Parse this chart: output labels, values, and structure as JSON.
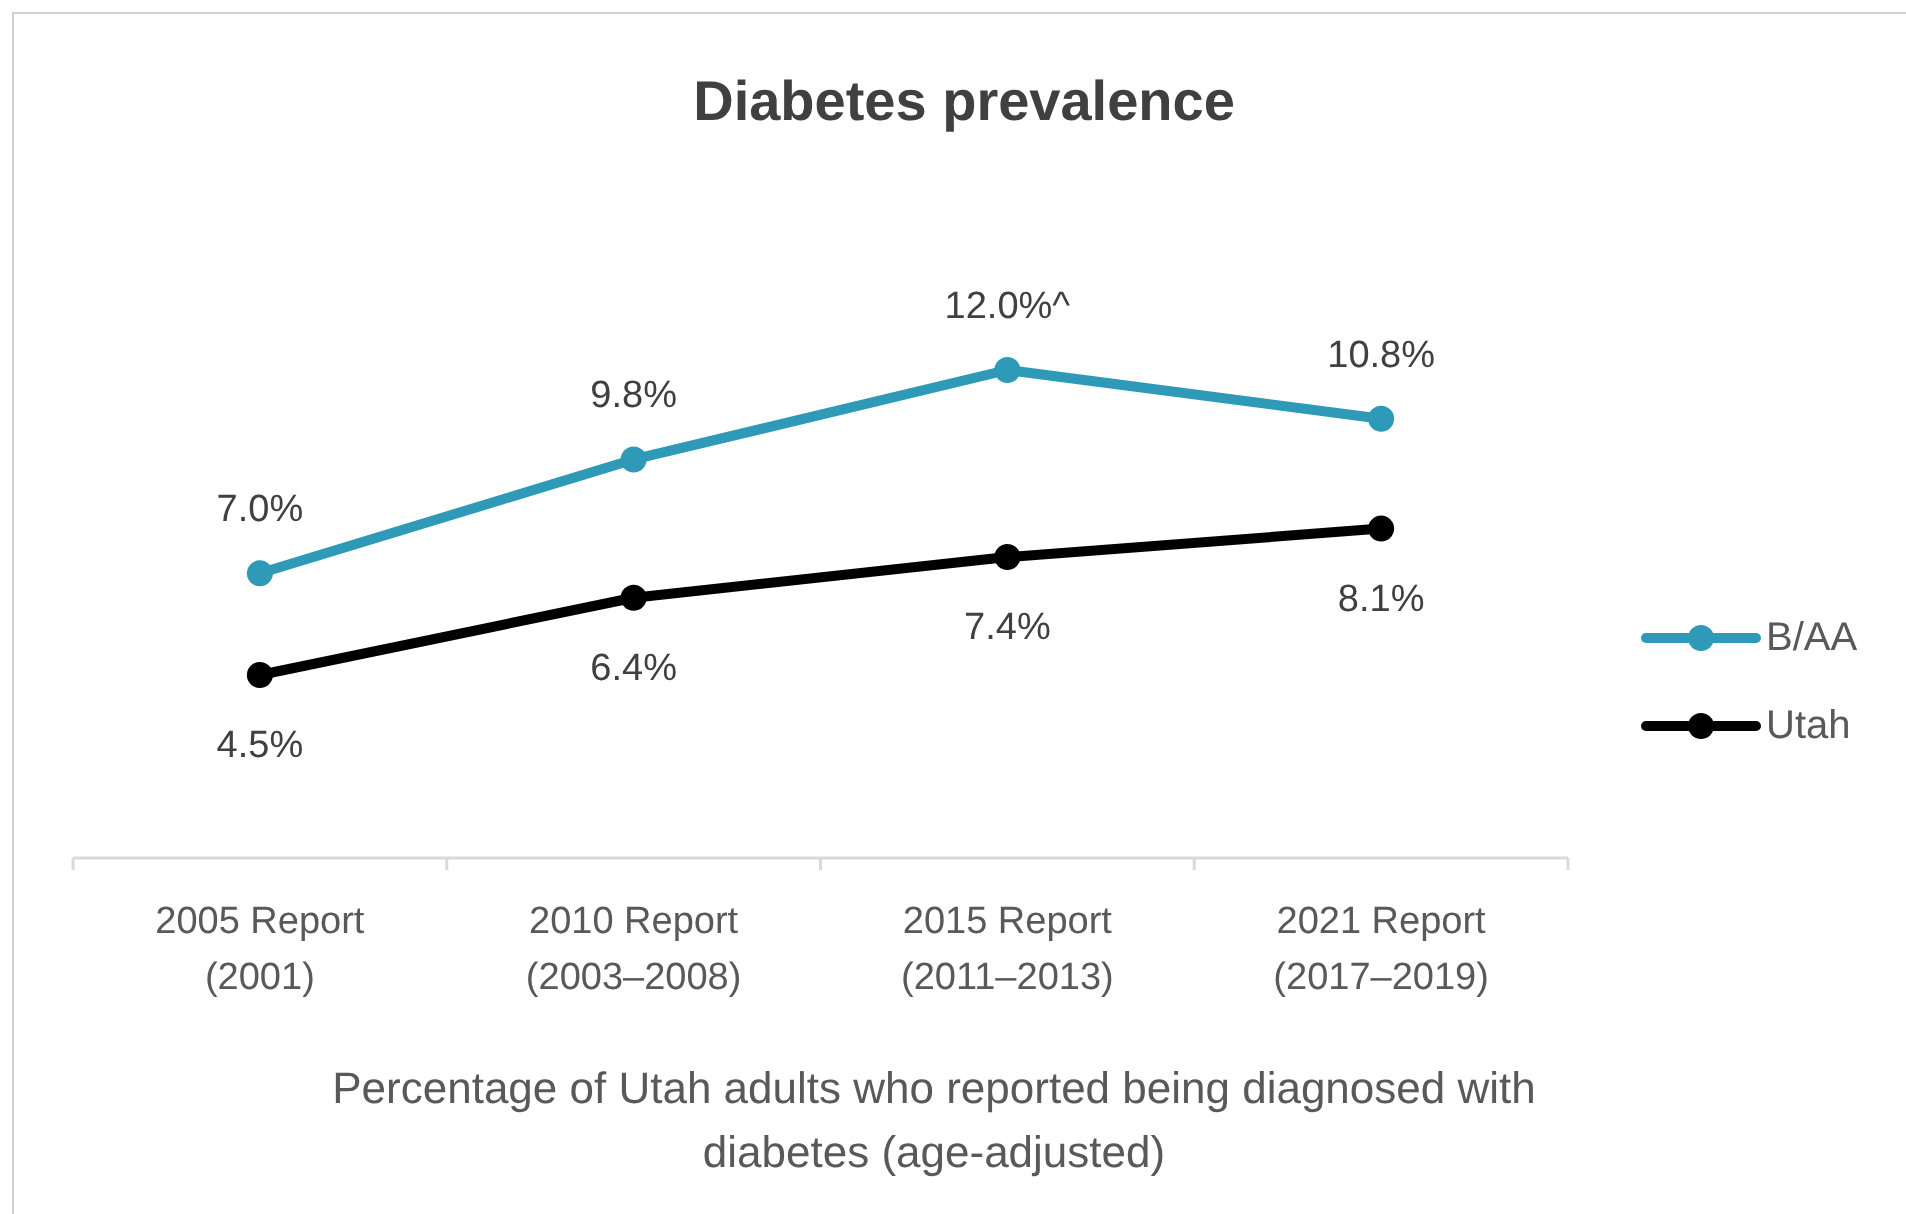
{
  "chart_data": {
    "type": "line",
    "title": "Diabetes prevalence",
    "xlabel": "Percentage of Utah adults who reported being diagnosed with diabetes (age-adjusted)",
    "categories": [
      "2005 Report (2001)",
      "2010 Report (2003–2008)",
      "2015 Report (2011–2013)",
      "2021 Report (2017–2019)"
    ],
    "series": [
      {
        "name": "B/AA",
        "color": "#2e9ab8",
        "values": [
          7.0,
          9.8,
          12.0,
          10.8
        ],
        "value_labels": [
          "7.0%",
          "9.8%",
          "12.0%^",
          "10.8%"
        ]
      },
      {
        "name": "Utah",
        "color": "#000000",
        "values": [
          4.5,
          6.4,
          7.4,
          8.1
        ],
        "value_labels": [
          "4.5%",
          "6.4%",
          "7.4%",
          "8.1%"
        ]
      }
    ],
    "legend": "right",
    "marker": "circle",
    "line_style": "solid",
    "tick_labels": "x"
  }
}
